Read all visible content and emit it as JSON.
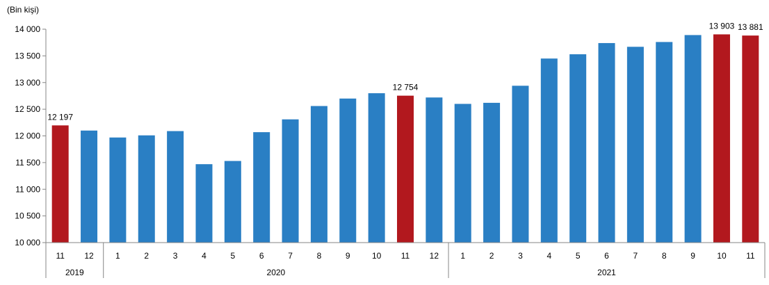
{
  "chart_data": {
    "type": "bar",
    "unit_label": "(Bin kişi)",
    "y_ticks": [
      "14 000",
      "13 500",
      "13 000",
      "12 500",
      "12 000",
      "11 500",
      "11 000",
      "10 500",
      "10 000"
    ],
    "y_tick_values": [
      14000,
      13500,
      13000,
      12500,
      12000,
      11500,
      11000,
      10500,
      10000
    ],
    "ylim": [
      10000,
      14000
    ],
    "grid": false,
    "categories": [
      "11",
      "12",
      "1",
      "2",
      "3",
      "4",
      "5",
      "6",
      "7",
      "8",
      "9",
      "10",
      "11",
      "12",
      "1",
      "2",
      "3",
      "4",
      "5",
      "6",
      "7",
      "8",
      "9",
      "10",
      "11"
    ],
    "values": [
      12197,
      12100,
      11970,
      12010,
      12090,
      11470,
      11530,
      12070,
      12310,
      12560,
      12700,
      12800,
      12754,
      12720,
      12600,
      12620,
      12940,
      13450,
      13530,
      13740,
      13670,
      13760,
      13890,
      13903,
      13881
    ],
    "highlighted": [
      true,
      false,
      false,
      false,
      false,
      false,
      false,
      false,
      false,
      false,
      false,
      false,
      true,
      false,
      false,
      false,
      false,
      false,
      false,
      false,
      false,
      false,
      false,
      true,
      true
    ],
    "data_labels": [
      "12 197",
      "",
      "",
      "",
      "",
      "",
      "",
      "",
      "",
      "",
      "",
      "",
      "12 754",
      "",
      "",
      "",
      "",
      "",
      "",
      "",
      "",
      "",
      "",
      "13 903",
      "13 881"
    ],
    "years": [
      {
        "label": "2019",
        "count": 2
      },
      {
        "label": "2020",
        "count": 12
      },
      {
        "label": "2021",
        "count": 11
      }
    ],
    "colors": {
      "normal": "#2a7fc4",
      "highlight": "#b2181e",
      "axis": "#868686"
    }
  }
}
